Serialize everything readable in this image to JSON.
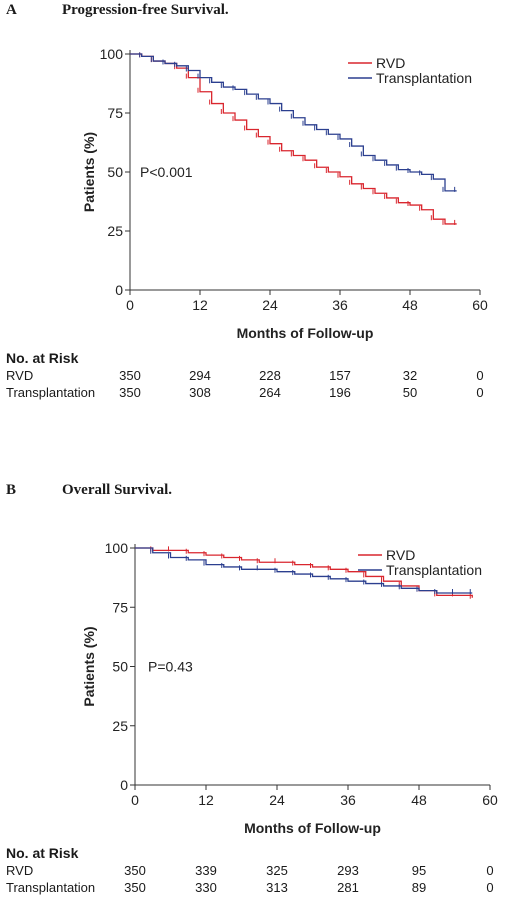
{
  "chart_data": [
    {
      "type": "line",
      "panel_letter": "A",
      "title": "Progression-free Survival.",
      "xlabel": "Months of Follow-up",
      "ylabel": "Patients (%)",
      "xlim": [
        0,
        60
      ],
      "ylim": [
        0,
        100
      ],
      "x_ticks": [
        0,
        12,
        24,
        36,
        48,
        60
      ],
      "y_ticks": [
        0,
        25,
        50,
        75,
        100
      ],
      "legend_position": "top-right",
      "annotation": "P<0.001",
      "series": [
        {
          "name": "RVD",
          "color": "#d9262e",
          "x": [
            0,
            2,
            4,
            6,
            8,
            10,
            12,
            14,
            16,
            18,
            20,
            22,
            24,
            26,
            28,
            30,
            32,
            34,
            36,
            38,
            40,
            42,
            44,
            46,
            48,
            50,
            52,
            54,
            56
          ],
          "y": [
            100,
            99,
            97,
            96,
            94,
            90,
            84,
            79,
            75,
            72,
            68,
            65,
            62,
            59,
            57,
            55,
            52,
            50,
            48,
            45,
            43,
            41,
            39,
            37,
            36,
            34,
            30,
            28,
            28
          ]
        },
        {
          "name": "Transplantation",
          "color": "#2b3f8f",
          "x": [
            0,
            2,
            4,
            6,
            8,
            10,
            12,
            14,
            16,
            18,
            20,
            22,
            24,
            26,
            28,
            30,
            32,
            34,
            36,
            38,
            40,
            42,
            44,
            46,
            48,
            50,
            52,
            54,
            56
          ],
          "y": [
            100,
            99,
            97,
            96,
            95,
            93,
            90,
            88,
            86,
            85,
            83,
            81,
            79,
            76,
            73,
            70,
            68,
            66,
            64,
            61,
            57,
            55,
            53,
            51,
            50,
            49,
            47,
            42,
            42
          ]
        }
      ],
      "risk_table": {
        "title": "No. at Risk",
        "columns": [
          0,
          12,
          24,
          36,
          48,
          60
        ],
        "rows": [
          {
            "label": "RVD",
            "values": [
              "350",
              "294",
              "228",
              "157",
              "32",
              "0"
            ]
          },
          {
            "label": "Transplantation",
            "values": [
              "350",
              "308",
              "264",
              "196",
              "50",
              "0"
            ]
          }
        ]
      }
    },
    {
      "type": "line",
      "panel_letter": "B",
      "title": "Overall Survival.",
      "xlabel": "Months of Follow-up",
      "ylabel": "Patients (%)",
      "xlim": [
        0,
        60
      ],
      "ylim": [
        0,
        100
      ],
      "x_ticks": [
        0,
        12,
        24,
        36,
        48,
        60
      ],
      "y_ticks": [
        0,
        25,
        50,
        75,
        100
      ],
      "legend_position": "top-right",
      "annotation": "P=0.43",
      "series": [
        {
          "name": "RVD",
          "color": "#d9262e",
          "x": [
            0,
            3,
            6,
            9,
            12,
            15,
            18,
            21,
            24,
            27,
            30,
            33,
            36,
            39,
            42,
            45,
            48,
            51,
            54,
            57
          ],
          "y": [
            100,
            99,
            99,
            98,
            97,
            96,
            95,
            94,
            94,
            93,
            92,
            91,
            90,
            88,
            86,
            84,
            82,
            80,
            80,
            79
          ]
        },
        {
          "name": "Transplantation",
          "color": "#2b3f8f",
          "x": [
            0,
            3,
            6,
            9,
            12,
            15,
            18,
            21,
            24,
            27,
            30,
            33,
            36,
            39,
            42,
            45,
            48,
            51,
            54,
            57
          ],
          "y": [
            100,
            98,
            96,
            95,
            93,
            92,
            91,
            91,
            90,
            89,
            88,
            87,
            86,
            85,
            84,
            83,
            82,
            81,
            81,
            81
          ]
        }
      ],
      "risk_table": {
        "title": "No. at Risk",
        "columns": [
          0,
          12,
          24,
          36,
          48,
          60
        ],
        "rows": [
          {
            "label": "RVD",
            "values": [
              "350",
              "339",
              "325",
              "293",
              "95",
              "0"
            ]
          },
          {
            "label": "Transplantation",
            "values": [
              "350",
              "330",
              "313",
              "281",
              "89",
              "0"
            ]
          }
        ]
      }
    }
  ]
}
